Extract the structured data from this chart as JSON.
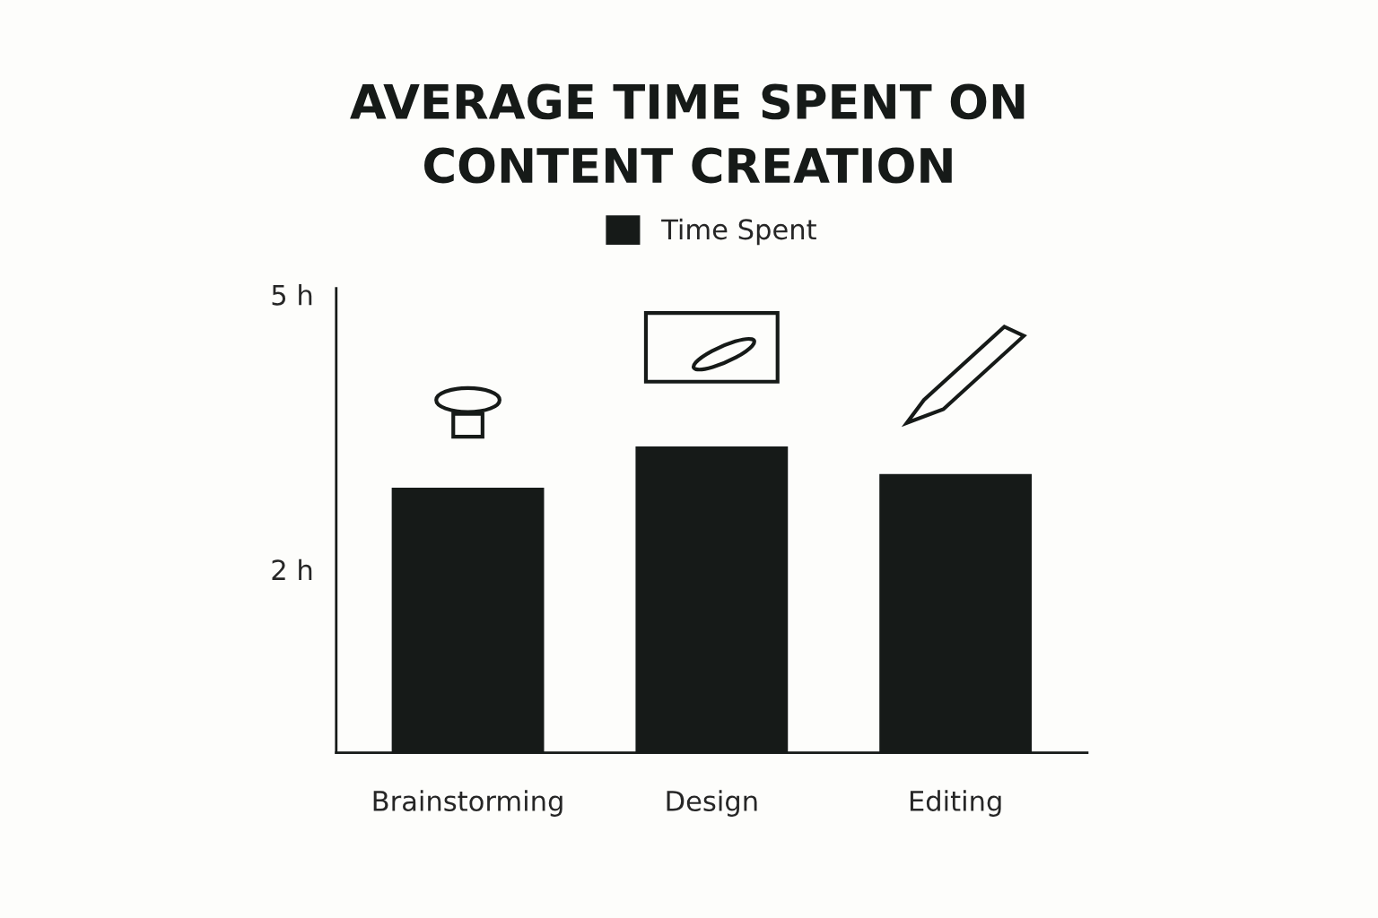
{
  "chart_data": {
    "type": "bar",
    "title": "AVERAGE TIME SPENT ON\nCONTENT CREATION",
    "categories": [
      "Brainstorming",
      "Design",
      "Editing"
    ],
    "series": [
      {
        "name": "Time Spent",
        "color": "#161a18",
        "values": [
          2.9,
          3.35,
          3.05
        ]
      }
    ],
    "ylim": [
      0,
      5.07
    ],
    "yticks": [
      {
        "value": 2,
        "label": "2 h"
      },
      {
        "value": 5,
        "label": "5 h"
      }
    ],
    "grid": false,
    "legend": "top"
  }
}
